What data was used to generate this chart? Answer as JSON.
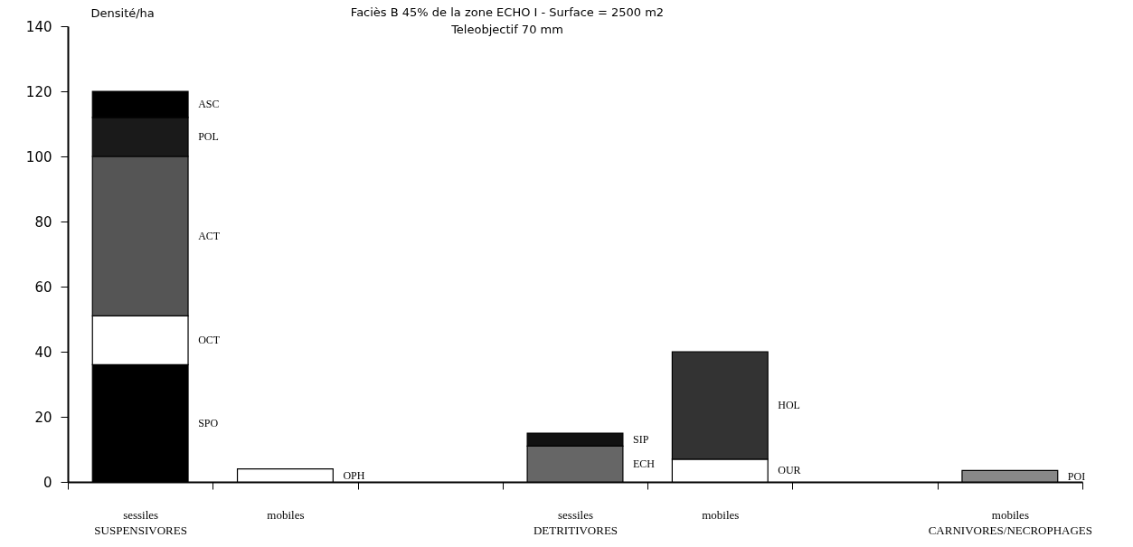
{
  "chart_data": {
    "type": "bar",
    "title": "Faciès B 45% de la zone ECHO I - Surface = 2500 m2",
    "subtitle": "Teleobjectif 70 mm",
    "ylabel": "Densité/ha",
    "categories": [
      "sessiles\nSUSPENSIVORES",
      "mobiles",
      null,
      "sessiles\nDETRITIVORES",
      "mobiles",
      null,
      "mobiles\nCARNIVORES/NECROPHAGES"
    ],
    "stacked": true,
    "ylim": [
      0,
      140
    ],
    "yticks": [
      0,
      20,
      40,
      60,
      80,
      100,
      120,
      140
    ],
    "grid": false,
    "legend": false,
    "series": [
      {
        "name": "SPO",
        "color": "#000000",
        "values": [
          36,
          null,
          null,
          null,
          null,
          null,
          null
        ]
      },
      {
        "name": "OCT",
        "color": "#ffffff",
        "values": [
          15,
          null,
          null,
          null,
          null,
          null,
          null
        ]
      },
      {
        "name": "ACT",
        "color": "#555555",
        "values": [
          49,
          null,
          null,
          null,
          null,
          null,
          null
        ]
      },
      {
        "name": "POL",
        "color": "#1a1a1a",
        "values": [
          12,
          null,
          null,
          null,
          null,
          null,
          null
        ]
      },
      {
        "name": "ASC",
        "color": "#000000",
        "values": [
          8,
          null,
          null,
          null,
          null,
          null,
          null
        ]
      },
      {
        "name": "OPH",
        "color": "#ffffff",
        "values": [
          null,
          4,
          null,
          null,
          null,
          null,
          null
        ]
      },
      {
        "name": "ECH",
        "color": "#666666",
        "values": [
          null,
          null,
          null,
          11,
          null,
          null,
          null
        ]
      },
      {
        "name": "SIP",
        "color": "#111111",
        "values": [
          null,
          null,
          null,
          4,
          null,
          null,
          null
        ]
      },
      {
        "name": "OUR",
        "color": "#ffffff",
        "values": [
          null,
          null,
          null,
          null,
          7,
          null,
          null
        ]
      },
      {
        "name": "HOL",
        "color": "#333333",
        "values": [
          null,
          null,
          null,
          null,
          33,
          null,
          null
        ]
      },
      {
        "name": "POI",
        "color": "#888888",
        "values": [
          null,
          null,
          null,
          null,
          null,
          null,
          3.5
        ]
      }
    ]
  }
}
